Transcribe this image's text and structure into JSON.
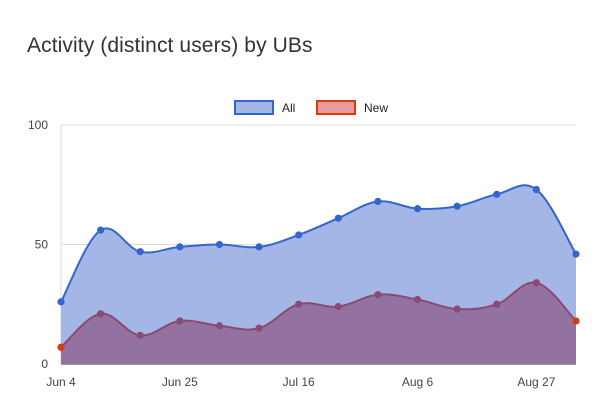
{
  "chart_data": {
    "type": "area",
    "title": "Activity (distinct users) by UBs",
    "xlabel": "",
    "ylabel": "",
    "x_tick_labels": [
      "Jun 4",
      "Jun 25",
      "Jul 16",
      "Aug 6",
      "Aug 27"
    ],
    "x_tick_positions": [
      0,
      3,
      6,
      9,
      12
    ],
    "ylim": [
      0,
      100
    ],
    "y_ticks": [
      0,
      50,
      100
    ],
    "grid": true,
    "legend_position": "top",
    "x": [
      "Jun 4",
      "Jun 11",
      "Jun 18",
      "Jun 25",
      "Jul 2",
      "Jul 9",
      "Jul 16",
      "Jul 23",
      "Jul 30",
      "Aug 6",
      "Aug 13",
      "Aug 20",
      "Aug 27",
      "Sep 3"
    ],
    "series": [
      {
        "name": "All",
        "color": "#3366cc",
        "fill": "#a4b6e6",
        "values": [
          26,
          56,
          47,
          49,
          50,
          49,
          54,
          61,
          68,
          65,
          66,
          71,
          73,
          46
        ]
      },
      {
        "name": "New",
        "color": "#dc3912",
        "fill": "#e99a9a",
        "line_color": "#8a4a72",
        "values": [
          7,
          21,
          12,
          18,
          16,
          15,
          25,
          24,
          29,
          27,
          23,
          25,
          34,
          18
        ]
      }
    ]
  }
}
